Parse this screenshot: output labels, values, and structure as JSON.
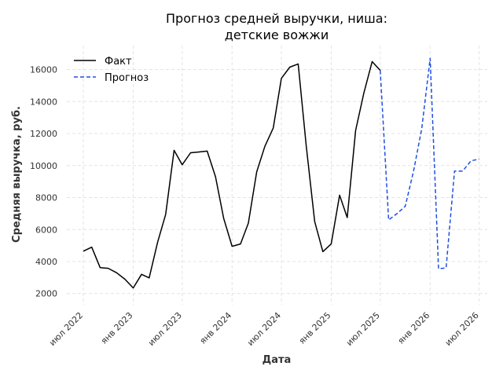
{
  "chart_data": {
    "type": "line",
    "title_lines": [
      "Прогноз средней выручки, ниша:",
      "детские вожжи"
    ],
    "xlabel": "Дата",
    "ylabel": "Средняя выручка, руб.",
    "x_range": [
      "2022-05-01",
      "2026-07-31"
    ],
    "ylim": [
      1300,
      17500
    ],
    "y_ticks": [
      2000,
      4000,
      6000,
      8000,
      10000,
      12000,
      14000,
      16000
    ],
    "x_ticks": [
      {
        "date": "2022-07-01",
        "label": "июл 2022"
      },
      {
        "date": "2023-01-01",
        "label": "янв 2023"
      },
      {
        "date": "2023-07-01",
        "label": "июл 2023"
      },
      {
        "date": "2024-01-01",
        "label": "янв 2024"
      },
      {
        "date": "2024-07-01",
        "label": "июл 2024"
      },
      {
        "date": "2025-01-01",
        "label": "янв 2025"
      },
      {
        "date": "2025-07-01",
        "label": "июл 2025"
      },
      {
        "date": "2026-01-01",
        "label": "янв 2026"
      },
      {
        "date": "2026-07-01",
        "label": "июл 2026"
      }
    ],
    "grid": true,
    "legend_position": "top-left",
    "series": [
      {
        "name": "Факт",
        "color": "#000000",
        "style": "solid",
        "points": [
          [
            "2022-07-01",
            4650
          ],
          [
            "2022-08-01",
            4900
          ],
          [
            "2022-09-01",
            3620
          ],
          [
            "2022-10-01",
            3580
          ],
          [
            "2022-11-01",
            3300
          ],
          [
            "2022-12-01",
            2900
          ],
          [
            "2023-01-01",
            2350
          ],
          [
            "2023-02-01",
            3200
          ],
          [
            "2023-03-01",
            2980
          ],
          [
            "2023-04-01",
            5200
          ],
          [
            "2023-05-01",
            6950
          ],
          [
            "2023-06-01",
            10950
          ],
          [
            "2023-07-01",
            10050
          ],
          [
            "2023-08-01",
            10800
          ],
          [
            "2023-09-01",
            10850
          ],
          [
            "2023-10-01",
            10900
          ],
          [
            "2023-11-01",
            9300
          ],
          [
            "2023-12-01",
            6700
          ],
          [
            "2024-01-01",
            4950
          ],
          [
            "2024-02-01",
            5100
          ],
          [
            "2024-03-01",
            6400
          ],
          [
            "2024-04-01",
            9600
          ],
          [
            "2024-05-01",
            11200
          ],
          [
            "2024-06-01",
            12350
          ],
          [
            "2024-07-01",
            15450
          ],
          [
            "2024-08-01",
            16150
          ],
          [
            "2024-09-01",
            16350
          ],
          [
            "2024-10-01",
            11200
          ],
          [
            "2024-11-01",
            6500
          ],
          [
            "2024-12-01",
            4620
          ],
          [
            "2025-01-01",
            5100
          ],
          [
            "2025-02-01",
            8150
          ],
          [
            "2025-03-01",
            6750
          ],
          [
            "2025-04-01",
            12200
          ],
          [
            "2025-05-01",
            14500
          ],
          [
            "2025-06-01",
            16500
          ],
          [
            "2025-07-01",
            15950
          ]
        ]
      },
      {
        "name": "Прогноз",
        "color": "#1f4fe0",
        "style": "dashed",
        "points": [
          [
            "2025-07-01",
            15950
          ],
          [
            "2025-08-01",
            6600
          ],
          [
            "2025-09-01",
            7000
          ],
          [
            "2025-10-01",
            7450
          ],
          [
            "2025-11-01",
            9650
          ],
          [
            "2025-12-01",
            12300
          ],
          [
            "2026-01-01",
            16700
          ],
          [
            "2026-02-01",
            3550
          ],
          [
            "2026-03-01",
            3600
          ],
          [
            "2026-04-01",
            9650
          ],
          [
            "2026-05-01",
            9650
          ],
          [
            "2026-06-01",
            10300
          ],
          [
            "2026-07-01",
            10400
          ]
        ]
      }
    ]
  }
}
